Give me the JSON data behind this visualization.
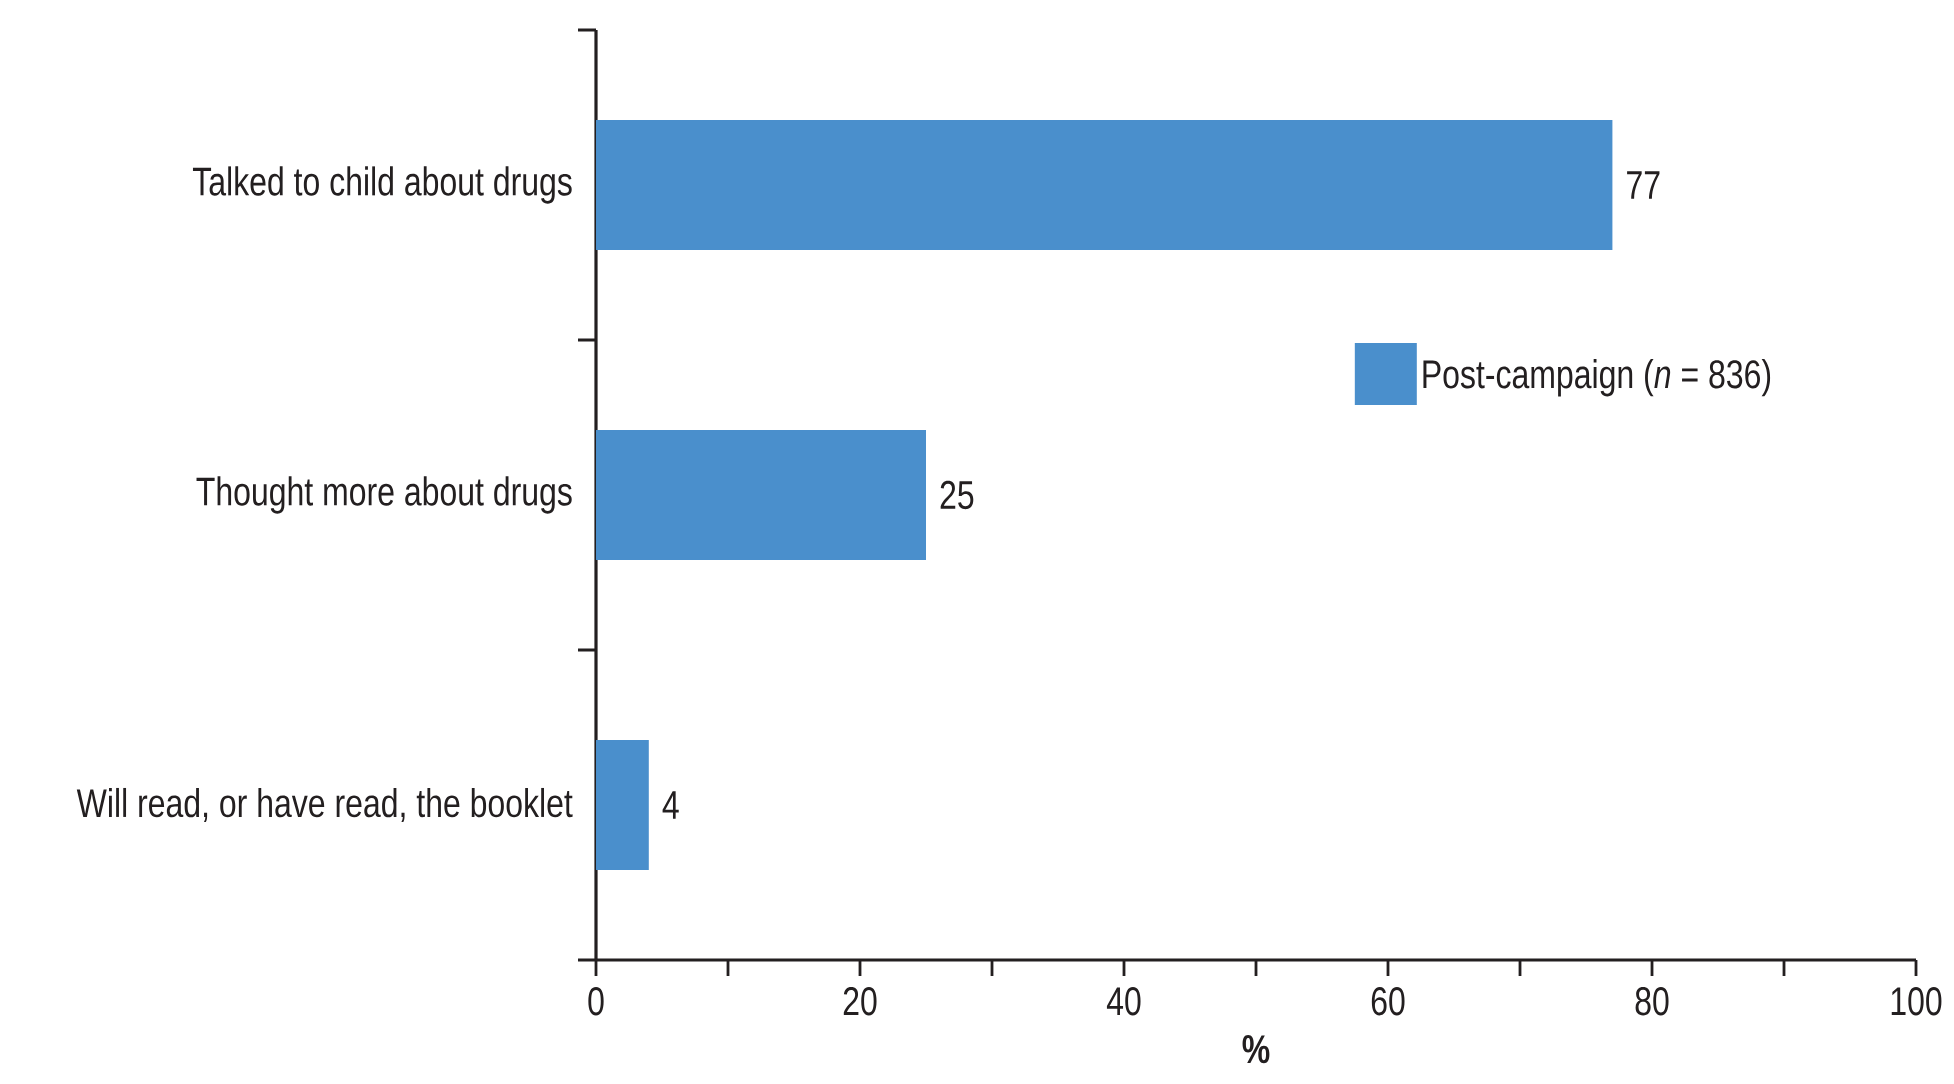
{
  "chart_data": {
    "type": "bar",
    "orientation": "horizontal",
    "categories": [
      "Talked to child about drugs",
      "Thought more about drugs",
      "Will read, or have read, the booklet"
    ],
    "series": [
      {
        "name": "Post-campaign (*n* = 836)",
        "color": "#4a8fcc",
        "values": [
          77,
          25,
          4
        ]
      }
    ],
    "xlabel": "%",
    "xlim": [
      0,
      100
    ],
    "xticks": [
      0,
      {
        "value": 10,
        "label": null
      },
      20,
      {
        "value": 30,
        "label": null
      },
      40,
      {
        "value": 50,
        "label": null
      },
      60,
      {
        "value": 70,
        "label": null
      },
      80,
      {
        "value": 90,
        "label": null
      },
      100
    ],
    "data_labels": true,
    "legend": "right",
    "grid": false
  }
}
